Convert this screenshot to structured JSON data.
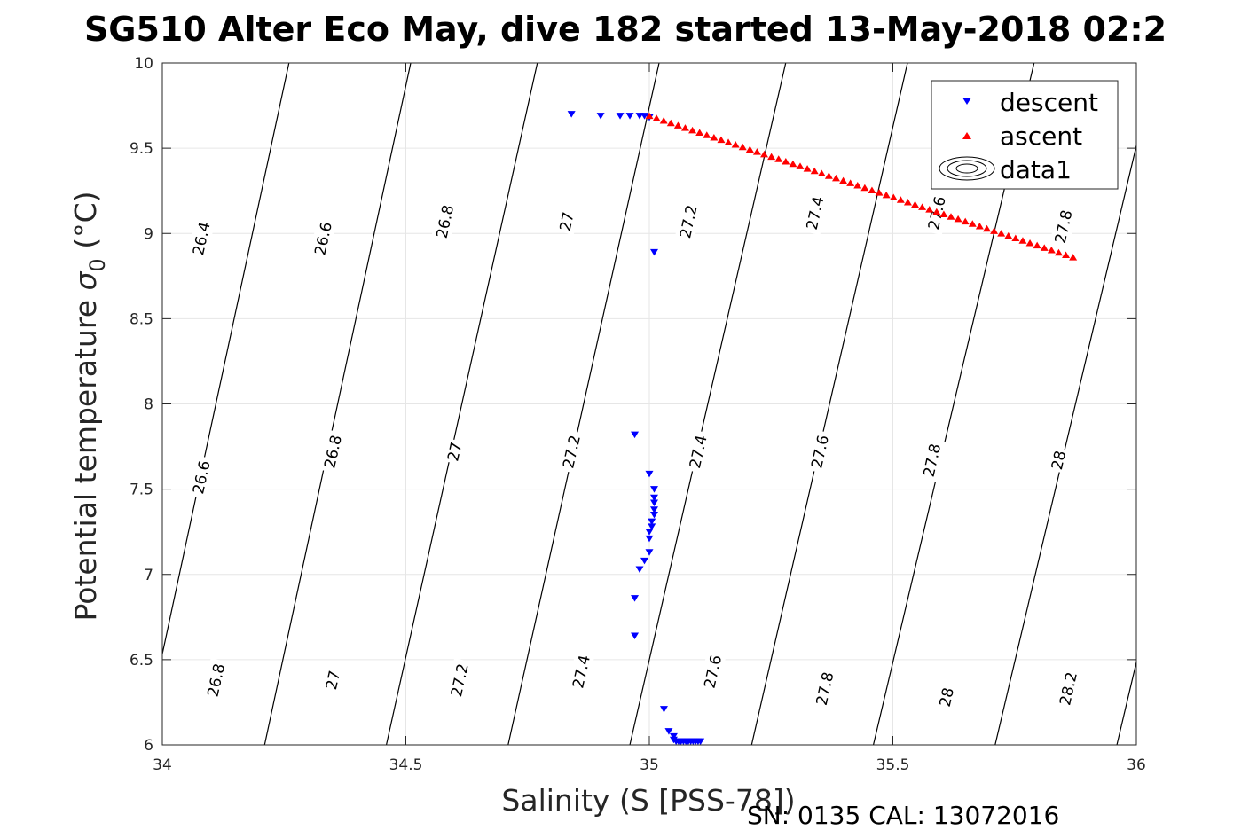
{
  "chart_data": {
    "type": "scatter",
    "title": "SG510 Alter Eco May, dive 182 started 13-May-2018 02:2",
    "xlabel": "Salinity (S [PSS-78])",
    "ylabel_main": "Potential temperature ",
    "ylabel_sigma": "σ",
    "ylabel_sub": "0",
    "ylabel_unit": " (°C)",
    "xlim": [
      34,
      36
    ],
    "ylim": [
      6,
      10
    ],
    "xticks": [
      "34",
      "34.5",
      "35",
      "35.5",
      "36"
    ],
    "yticks": [
      "6",
      "6.5",
      "7",
      "7.5",
      "8",
      "8.5",
      "9",
      "9.5",
      "10"
    ],
    "grid": true,
    "legend_position": "top-right",
    "legend": [
      {
        "name": "descent",
        "marker": "triangle-down",
        "color": "#0000ff"
      },
      {
        "name": "ascent",
        "marker": "triangle-up",
        "color": "#ff0000"
      },
      {
        "name": "data1",
        "marker": "contour",
        "color": "#000000"
      }
    ],
    "isopycnals": [
      {
        "label": "26.4",
        "s_at_t6": 33.71,
        "s_at_t10": 34.0
      },
      {
        "label": "26.6",
        "s_at_t6": 33.96,
        "s_at_t10": 34.26
      },
      {
        "label": "26.8",
        "s_at_t6": 34.21,
        "s_at_t10": 34.51
      },
      {
        "label": "27",
        "s_at_t6": 34.46,
        "s_at_t10": 34.77
      },
      {
        "label": "27.2",
        "s_at_t6": 34.71,
        "s_at_t10": 35.02
      },
      {
        "label": "27.4",
        "s_at_t6": 34.96,
        "s_at_t10": 35.28
      },
      {
        "label": "27.6",
        "s_at_t6": 35.21,
        "s_at_t10": 35.53
      },
      {
        "label": "27.8",
        "s_at_t6": 35.46,
        "s_at_t10": 35.79
      },
      {
        "label": "28",
        "s_at_t6": 35.71,
        "s_at_t10": 36.04
      },
      {
        "label": "28.2",
        "s_at_t6": 35.96,
        "s_at_t10": 36.29
      }
    ],
    "contour_labels": [
      {
        "text": "26.4",
        "s": 34.08,
        "t": 8.97
      },
      {
        "text": "26.6",
        "s": 34.33,
        "t": 8.97
      },
      {
        "text": "26.8",
        "s": 34.58,
        "t": 9.07
      },
      {
        "text": "27",
        "s": 34.83,
        "t": 9.07
      },
      {
        "text": "27.2",
        "s": 35.08,
        "t": 9.07
      },
      {
        "text": "27.4",
        "s": 35.34,
        "t": 9.12
      },
      {
        "text": "27.6",
        "s": 35.59,
        "t": 9.12
      },
      {
        "text": "27.8",
        "s": 35.85,
        "t": 9.04
      },
      {
        "text": "26.6",
        "s": 34.08,
        "t": 7.57
      },
      {
        "text": "26.8",
        "s": 34.35,
        "t": 7.72
      },
      {
        "text": "27",
        "s": 34.6,
        "t": 7.72
      },
      {
        "text": "27.2",
        "s": 34.84,
        "t": 7.72
      },
      {
        "text": "27.4",
        "s": 35.1,
        "t": 7.72
      },
      {
        "text": "27.6",
        "s": 35.35,
        "t": 7.72
      },
      {
        "text": "27.8",
        "s": 35.58,
        "t": 7.67
      },
      {
        "text": "28",
        "s": 35.84,
        "t": 7.67
      },
      {
        "text": "26.8",
        "s": 34.11,
        "t": 6.38
      },
      {
        "text": "27",
        "s": 34.35,
        "t": 6.38
      },
      {
        "text": "27.2",
        "s": 34.61,
        "t": 6.38
      },
      {
        "text": "27.4",
        "s": 34.86,
        "t": 6.43
      },
      {
        "text": "27.6",
        "s": 35.13,
        "t": 6.43
      },
      {
        "text": "27.8",
        "s": 35.36,
        "t": 6.33
      },
      {
        "text": "28",
        "s": 35.61,
        "t": 6.28
      },
      {
        "text": "28.2",
        "s": 35.86,
        "t": 6.33
      }
    ],
    "series": [
      {
        "name": "descent",
        "color": "#0000ff",
        "marker": "triangle-down",
        "points": [
          [
            34.84,
            9.7
          ],
          [
            34.9,
            9.69
          ],
          [
            34.94,
            9.69
          ],
          [
            34.96,
            9.69
          ],
          [
            34.98,
            9.69
          ],
          [
            34.99,
            9.69
          ],
          [
            35.0,
            9.68
          ],
          [
            35.01,
            8.89
          ],
          [
            34.97,
            7.82
          ],
          [
            35.0,
            7.59
          ],
          [
            35.01,
            7.5
          ],
          [
            35.01,
            7.45
          ],
          [
            35.01,
            7.42
          ],
          [
            35.01,
            7.38
          ],
          [
            35.01,
            7.35
          ],
          [
            35.005,
            7.31
          ],
          [
            35.005,
            7.28
          ],
          [
            35.0,
            7.25
          ],
          [
            35.0,
            7.21
          ],
          [
            35.0,
            7.13
          ],
          [
            34.99,
            7.08
          ],
          [
            34.98,
            7.03
          ],
          [
            34.97,
            6.86
          ],
          [
            34.97,
            6.64
          ],
          [
            35.03,
            6.21
          ],
          [
            35.04,
            6.08
          ],
          [
            35.05,
            6.05
          ],
          [
            35.05,
            6.03
          ],
          [
            35.055,
            6.02
          ],
          [
            35.06,
            6.02
          ],
          [
            35.065,
            6.02
          ],
          [
            35.07,
            6.02
          ],
          [
            35.075,
            6.02
          ],
          [
            35.08,
            6.02
          ],
          [
            35.085,
            6.02
          ],
          [
            35.09,
            6.02
          ],
          [
            35.095,
            6.02
          ],
          [
            35.1,
            6.02
          ],
          [
            35.105,
            6.02
          ]
        ]
      },
      {
        "name": "ascent",
        "color": "#ff0000",
        "marker": "triangle-up",
        "start": [
          35.0,
          9.69
        ],
        "end": [
          35.87,
          8.86
        ],
        "count": 60
      }
    ]
  },
  "footer": "SN: 0135  CAL: 13072016"
}
